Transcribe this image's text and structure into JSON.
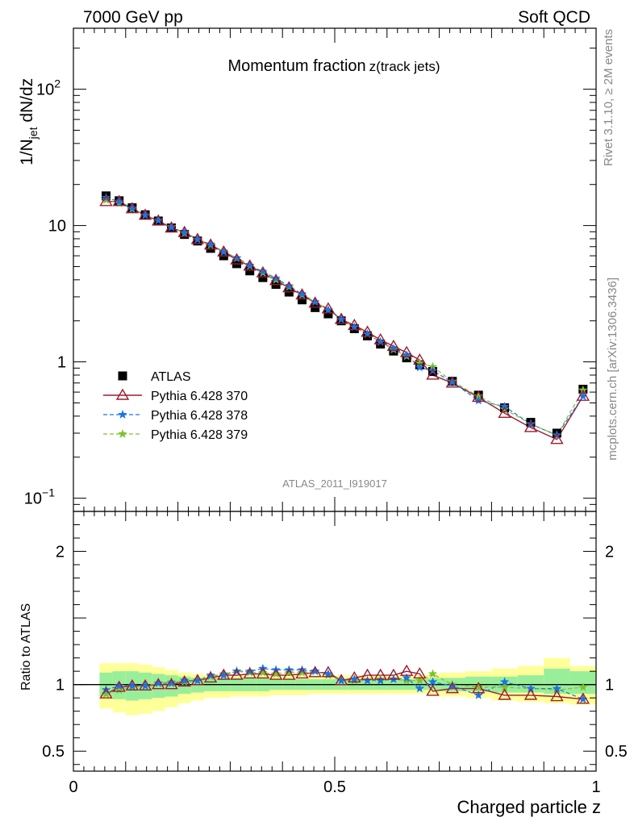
{
  "header": {
    "left": "7000 GeV pp",
    "right": "Soft QCD"
  },
  "side_text": {
    "rivet": "Rivet 3.1.10, ≥ 2M events",
    "mcplots": "mcplots.cern.ch [arXiv:1306.3436]"
  },
  "analysis_id": "ATLAS_2011_I919017",
  "chart_data": [
    {
      "type": "scatter",
      "title": "Momentum fraction",
      "title_sub": "z(track jets)",
      "ylabel": "1/N_jet dN/dz",
      "yscale": "log",
      "xlim": [
        0,
        1.0
      ],
      "ylim": [
        0.08,
        280
      ],
      "yticks": [
        {
          "value": 0.1,
          "label": "10",
          "exp": "−1"
        },
        {
          "value": 1,
          "label": "1",
          "exp": ""
        },
        {
          "value": 10,
          "label": "10",
          "exp": ""
        },
        {
          "value": 100,
          "label": "10",
          "exp": "2"
        }
      ],
      "x": [
        0.0625,
        0.0875,
        0.1125,
        0.1375,
        0.1625,
        0.1875,
        0.2125,
        0.2375,
        0.2625,
        0.2875,
        0.3125,
        0.3375,
        0.3625,
        0.3875,
        0.4125,
        0.4375,
        0.4625,
        0.4875,
        0.5125,
        0.5375,
        0.5625,
        0.5875,
        0.6125,
        0.6375,
        0.6625,
        0.6875,
        0.725,
        0.775,
        0.825,
        0.875,
        0.925,
        0.975
      ],
      "series": [
        {
          "name": "ATLAS",
          "marker": "square",
          "color": "#000000",
          "values": [
            16.5,
            15.2,
            13.5,
            12.0,
            10.8,
            9.6,
            8.6,
            7.7,
            6.8,
            6.0,
            5.25,
            4.65,
            4.15,
            3.7,
            3.25,
            2.85,
            2.5,
            2.25,
            2.0,
            1.75,
            1.55,
            1.35,
            1.2,
            1.07,
            0.95,
            0.85,
            0.72,
            0.57,
            0.46,
            0.36,
            0.3,
            0.63
          ]
        },
        {
          "name": "Pythia 6.428 370",
          "marker": "triangle",
          "color": "#9b1b30",
          "values": [
            15.0,
            15.0,
            13.3,
            11.9,
            10.8,
            9.6,
            8.9,
            7.9,
            7.2,
            6.4,
            5.6,
            5.05,
            4.5,
            3.95,
            3.5,
            3.1,
            2.7,
            2.45,
            2.05,
            1.85,
            1.65,
            1.45,
            1.3,
            1.17,
            1.03,
            0.8,
            0.7,
            0.55,
            0.42,
            0.33,
            0.27,
            0.56
          ]
        },
        {
          "name": "Pythia 6.428 378",
          "marker": "star",
          "color": "#1a73e8",
          "values": [
            16.0,
            15.0,
            13.4,
            11.9,
            10.9,
            9.7,
            8.9,
            7.9,
            7.3,
            6.4,
            5.8,
            5.1,
            4.6,
            4.1,
            3.6,
            3.15,
            2.75,
            2.4,
            2.05,
            1.8,
            1.6,
            1.4,
            1.25,
            1.12,
            0.91,
            0.86,
            0.71,
            0.52,
            0.47,
            0.35,
            0.29,
            0.56
          ]
        },
        {
          "name": "Pythia 6.428 379",
          "marker": "star",
          "color": "#7cc22e",
          "values": [
            15.4,
            14.6,
            13.2,
            11.9,
            10.9,
            9.8,
            8.8,
            7.9,
            7.2,
            6.5,
            5.75,
            5.05,
            4.5,
            4.0,
            3.55,
            3.1,
            2.75,
            2.4,
            2.05,
            1.8,
            1.6,
            1.4,
            1.23,
            1.1,
            0.98,
            0.92,
            0.72,
            0.56,
            0.45,
            0.35,
            0.29,
            0.62
          ]
        }
      ],
      "legend": {
        "position": "bottom-left"
      }
    },
    {
      "type": "line",
      "ylabel": "Ratio to ATLAS",
      "xlabel": "Charged particle z",
      "xlim": [
        0,
        1.0
      ],
      "ylim": [
        0.35,
        2.3
      ],
      "xticks": [
        {
          "value": 0,
          "label": "0"
        },
        {
          "value": 0.5,
          "label": "0.5"
        },
        {
          "value": 1,
          "label": "1"
        }
      ],
      "yticks": [
        {
          "value": 0.5,
          "label": "0.5"
        },
        {
          "value": 1,
          "label": "1"
        },
        {
          "value": 2,
          "label": "2"
        }
      ],
      "band_bins": [
        [
          0.05,
          0.075
        ],
        [
          0.075,
          0.1
        ],
        [
          0.1,
          0.125
        ],
        [
          0.125,
          0.15
        ],
        [
          0.15,
          0.175
        ],
        [
          0.175,
          0.2
        ],
        [
          0.2,
          0.225
        ],
        [
          0.225,
          0.25
        ],
        [
          0.25,
          0.275
        ],
        [
          0.275,
          0.3
        ],
        [
          0.3,
          0.325
        ],
        [
          0.325,
          0.35
        ],
        [
          0.35,
          0.375
        ],
        [
          0.375,
          0.4
        ],
        [
          0.4,
          0.425
        ],
        [
          0.425,
          0.45
        ],
        [
          0.45,
          0.475
        ],
        [
          0.475,
          0.5
        ],
        [
          0.5,
          0.525
        ],
        [
          0.525,
          0.55
        ],
        [
          0.55,
          0.575
        ],
        [
          0.575,
          0.6
        ],
        [
          0.6,
          0.625
        ],
        [
          0.625,
          0.65
        ],
        [
          0.65,
          0.675
        ],
        [
          0.675,
          0.7
        ],
        [
          0.7,
          0.75
        ],
        [
          0.75,
          0.8
        ],
        [
          0.8,
          0.85
        ],
        [
          0.85,
          0.9
        ],
        [
          0.9,
          0.95
        ],
        [
          0.95,
          1.0
        ]
      ],
      "band_inner": [
        [
          0.91,
          1.09
        ],
        [
          0.89,
          1.1
        ],
        [
          0.88,
          1.1
        ],
        [
          0.89,
          1.09
        ],
        [
          0.9,
          1.08
        ],
        [
          0.91,
          1.07
        ],
        [
          0.93,
          1.06
        ],
        [
          0.94,
          1.05
        ],
        [
          0.95,
          1.05
        ],
        [
          0.95,
          1.05
        ],
        [
          0.95,
          1.05
        ],
        [
          0.95,
          1.05
        ],
        [
          0.95,
          1.05
        ],
        [
          0.96,
          1.04
        ],
        [
          0.96,
          1.04
        ],
        [
          0.96,
          1.04
        ],
        [
          0.96,
          1.04
        ],
        [
          0.96,
          1.04
        ],
        [
          0.96,
          1.04
        ],
        [
          0.96,
          1.04
        ],
        [
          0.96,
          1.04
        ],
        [
          0.96,
          1.04
        ],
        [
          0.96,
          1.04
        ],
        [
          0.96,
          1.04
        ],
        [
          0.96,
          1.04
        ],
        [
          0.96,
          1.05
        ],
        [
          0.95,
          1.05
        ],
        [
          0.95,
          1.06
        ],
        [
          0.94,
          1.06
        ],
        [
          0.94,
          1.07
        ],
        [
          0.93,
          1.12
        ],
        [
          0.93,
          1.1
        ]
      ],
      "band_outer": [
        [
          0.82,
          1.16
        ],
        [
          0.79,
          1.16
        ],
        [
          0.77,
          1.16
        ],
        [
          0.78,
          1.15
        ],
        [
          0.8,
          1.13
        ],
        [
          0.83,
          1.11
        ],
        [
          0.86,
          1.09
        ],
        [
          0.88,
          1.08
        ],
        [
          0.9,
          1.07
        ],
        [
          0.9,
          1.07
        ],
        [
          0.91,
          1.07
        ],
        [
          0.91,
          1.07
        ],
        [
          0.91,
          1.07
        ],
        [
          0.92,
          1.07
        ],
        [
          0.92,
          1.07
        ],
        [
          0.92,
          1.07
        ],
        [
          0.93,
          1.07
        ],
        [
          0.93,
          1.07
        ],
        [
          0.93,
          1.07
        ],
        [
          0.93,
          1.07
        ],
        [
          0.93,
          1.07
        ],
        [
          0.93,
          1.07
        ],
        [
          0.93,
          1.07
        ],
        [
          0.93,
          1.07
        ],
        [
          0.93,
          1.07
        ],
        [
          0.92,
          1.08
        ],
        [
          0.91,
          1.09
        ],
        [
          0.9,
          1.1
        ],
        [
          0.88,
          1.12
        ],
        [
          0.87,
          1.14
        ],
        [
          0.86,
          1.2
        ],
        [
          0.85,
          1.14
        ]
      ],
      "x": [
        0.0625,
        0.0875,
        0.1125,
        0.1375,
        0.1625,
        0.1875,
        0.2125,
        0.2375,
        0.2625,
        0.2875,
        0.3125,
        0.3375,
        0.3625,
        0.3875,
        0.4125,
        0.4375,
        0.4625,
        0.4875,
        0.5125,
        0.5375,
        0.5625,
        0.5875,
        0.6125,
        0.6375,
        0.6625,
        0.6875,
        0.725,
        0.775,
        0.825,
        0.875,
        0.925,
        0.975
      ],
      "series": [
        {
          "name": "Pythia 6.428 370",
          "marker": "triangle",
          "color": "#9b1b30",
          "values": [
            0.93,
            0.98,
            0.99,
            0.99,
            1.0,
            1.0,
            1.02,
            1.03,
            1.05,
            1.07,
            1.07,
            1.08,
            1.08,
            1.07,
            1.07,
            1.08,
            1.09,
            1.09,
            1.03,
            1.05,
            1.07,
            1.07,
            1.07,
            1.1,
            1.08,
            0.95,
            0.97,
            0.97,
            0.92,
            0.92,
            0.91,
            0.89
          ]
        },
        {
          "name": "Pythia 6.428 378",
          "marker": "star",
          "color": "#1a73e8",
          "values": [
            0.96,
            0.99,
            0.99,
            0.99,
            1.01,
            1.01,
            1.03,
            1.03,
            1.07,
            1.07,
            1.1,
            1.1,
            1.12,
            1.11,
            1.11,
            1.11,
            1.1,
            1.08,
            1.03,
            1.04,
            1.03,
            1.03,
            1.04,
            1.05,
            0.97,
            1.02,
            0.99,
            0.92,
            1.02,
            0.97,
            0.97,
            0.89
          ]
        },
        {
          "name": "Pythia 6.428 379",
          "marker": "star",
          "color": "#7cc22e",
          "values": [
            0.93,
            0.96,
            0.98,
            0.99,
            1.01,
            1.02,
            1.02,
            1.03,
            1.06,
            1.08,
            1.1,
            1.09,
            1.09,
            1.08,
            1.09,
            1.09,
            1.1,
            1.07,
            1.03,
            1.03,
            1.03,
            1.04,
            1.04,
            1.03,
            1.03,
            1.08,
            1.0,
            0.98,
            0.98,
            0.97,
            0.96,
            0.98
          ]
        }
      ]
    }
  ]
}
